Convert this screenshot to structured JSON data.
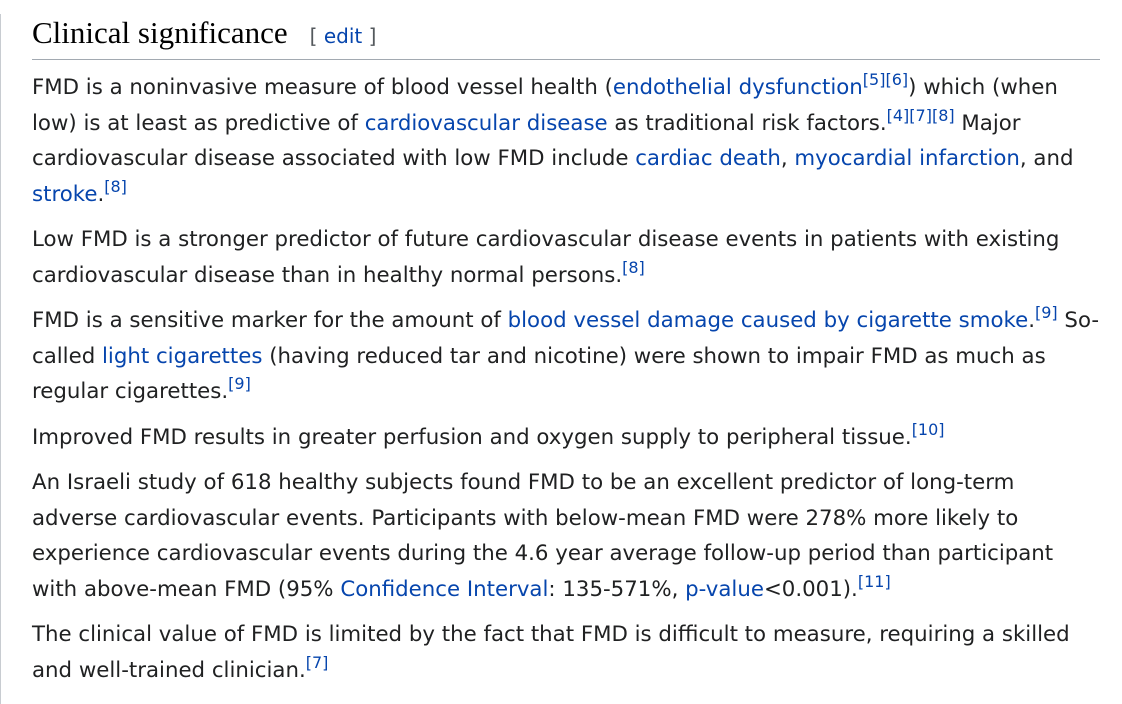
{
  "heading": {
    "title": "Clinical significance",
    "edit_open": "[ ",
    "edit_label": "edit",
    "edit_close": " ]"
  },
  "p1": {
    "t1": "FMD is a noninvasive measure of blood vessel health (",
    "l1": "endothelial dysfunction",
    "r1": "[5]",
    "r2": "[6]",
    "t2": ") which (when low) is at least as predictive of ",
    "l2": "cardiovascular disease",
    "t3": " as traditional risk factors.",
    "r3": "[4]",
    "r4": "[7]",
    "r5": "[8]",
    "t4": " Major cardiovascular disease associated with low FMD include ",
    "l3": "cardiac death",
    "t5": ", ",
    "l4": "myocardial infarction",
    "t6": ", and ",
    "l5": "stroke",
    "t7": ".",
    "r6": "[8]"
  },
  "p2": {
    "t1": "Low FMD is a stronger predictor of future cardiovascular disease events in patients with existing cardiovascular disease than in healthy normal persons.",
    "r1": "[8]"
  },
  "p3": {
    "t1": "FMD is a sensitive marker for the amount of ",
    "l1": "blood vessel damage caused by cigarette smoke",
    "t2": ".",
    "r1": "[9]",
    "t3": " So-called ",
    "l2": "light cigarettes",
    "t4": " (having reduced tar and nicotine) were shown to impair FMD as much as regular cigarettes.",
    "r2": "[9]"
  },
  "p4": {
    "t1": "Improved FMD results in greater perfusion and oxygen supply to peripheral tissue.",
    "r1": "[10]"
  },
  "p5": {
    "t1": "An Israeli study of 618 healthy subjects found FMD to be an excellent predictor of long-term adverse cardiovascular events. Participants with below-mean FMD were 278% more likely to experience cardiovascular events during the 4.6 year average follow-up period than participant with above-mean FMD (95% ",
    "l1": "Confidence Interval",
    "t2": ": 135-571%, ",
    "l2": "p-value",
    "t3": "<0.001).",
    "r1": "[11]"
  },
  "p6": {
    "t1": "The clinical value of FMD is limited by the fact that FMD is difficult to measure, requiring a skilled and well-trained clinician.",
    "r1": "[7]"
  },
  "colors": {
    "link": "#0645ad",
    "text": "#202122",
    "rule": "#a2a9b1"
  }
}
